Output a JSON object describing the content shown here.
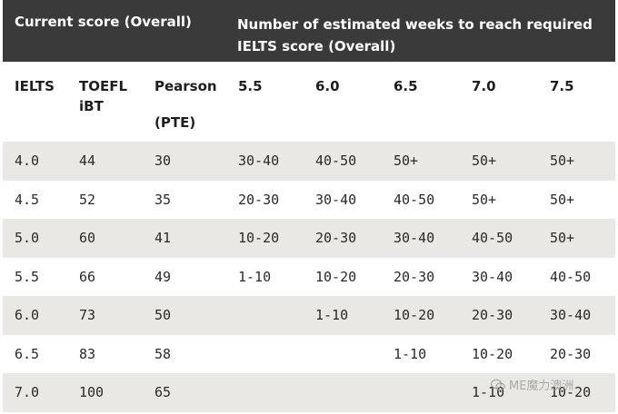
{
  "header": {
    "left_title": "Current score (Overall)",
    "right_title": "Number of estimated weeks to reach required IELTS score (Overall)"
  },
  "columns": {
    "ielts": "IELTS",
    "toefl_line1": "TOEFL",
    "toefl_line2": "iBT",
    "pearson_line1": "Pearson",
    "pearson_line2": "(PTE)",
    "t55": "5.5",
    "t60": "6.0",
    "t65": "6.5",
    "t70": "7.0",
    "t75": "7.5"
  },
  "rows": [
    [
      "4.0",
      "44",
      "30",
      "30-40",
      "40-50",
      "50+",
      "50+",
      "50+"
    ],
    [
      "4.5",
      "52",
      "35",
      "20-30",
      "30-40",
      "40-50",
      "50+",
      "50+"
    ],
    [
      "5.0",
      "60",
      "41",
      "10-20",
      "20-30",
      "30-40",
      "40-50",
      "50+"
    ],
    [
      "5.5",
      "66",
      "49",
      "1-10",
      "10-20",
      "20-30",
      "30-40",
      "40-50"
    ],
    [
      "6.0",
      "73",
      "50",
      "",
      "1-10",
      "10-20",
      "20-30",
      "30-40"
    ],
    [
      "6.5",
      "83",
      "58",
      "",
      "",
      "1-10",
      "10-20",
      "20-30"
    ],
    [
      "7.0",
      "100",
      "65",
      "",
      "",
      "",
      "1-10",
      "10-20"
    ]
  ],
  "watermark": {
    "text": "ME魔力澳洲",
    "icon": "wechat-icon"
  }
}
